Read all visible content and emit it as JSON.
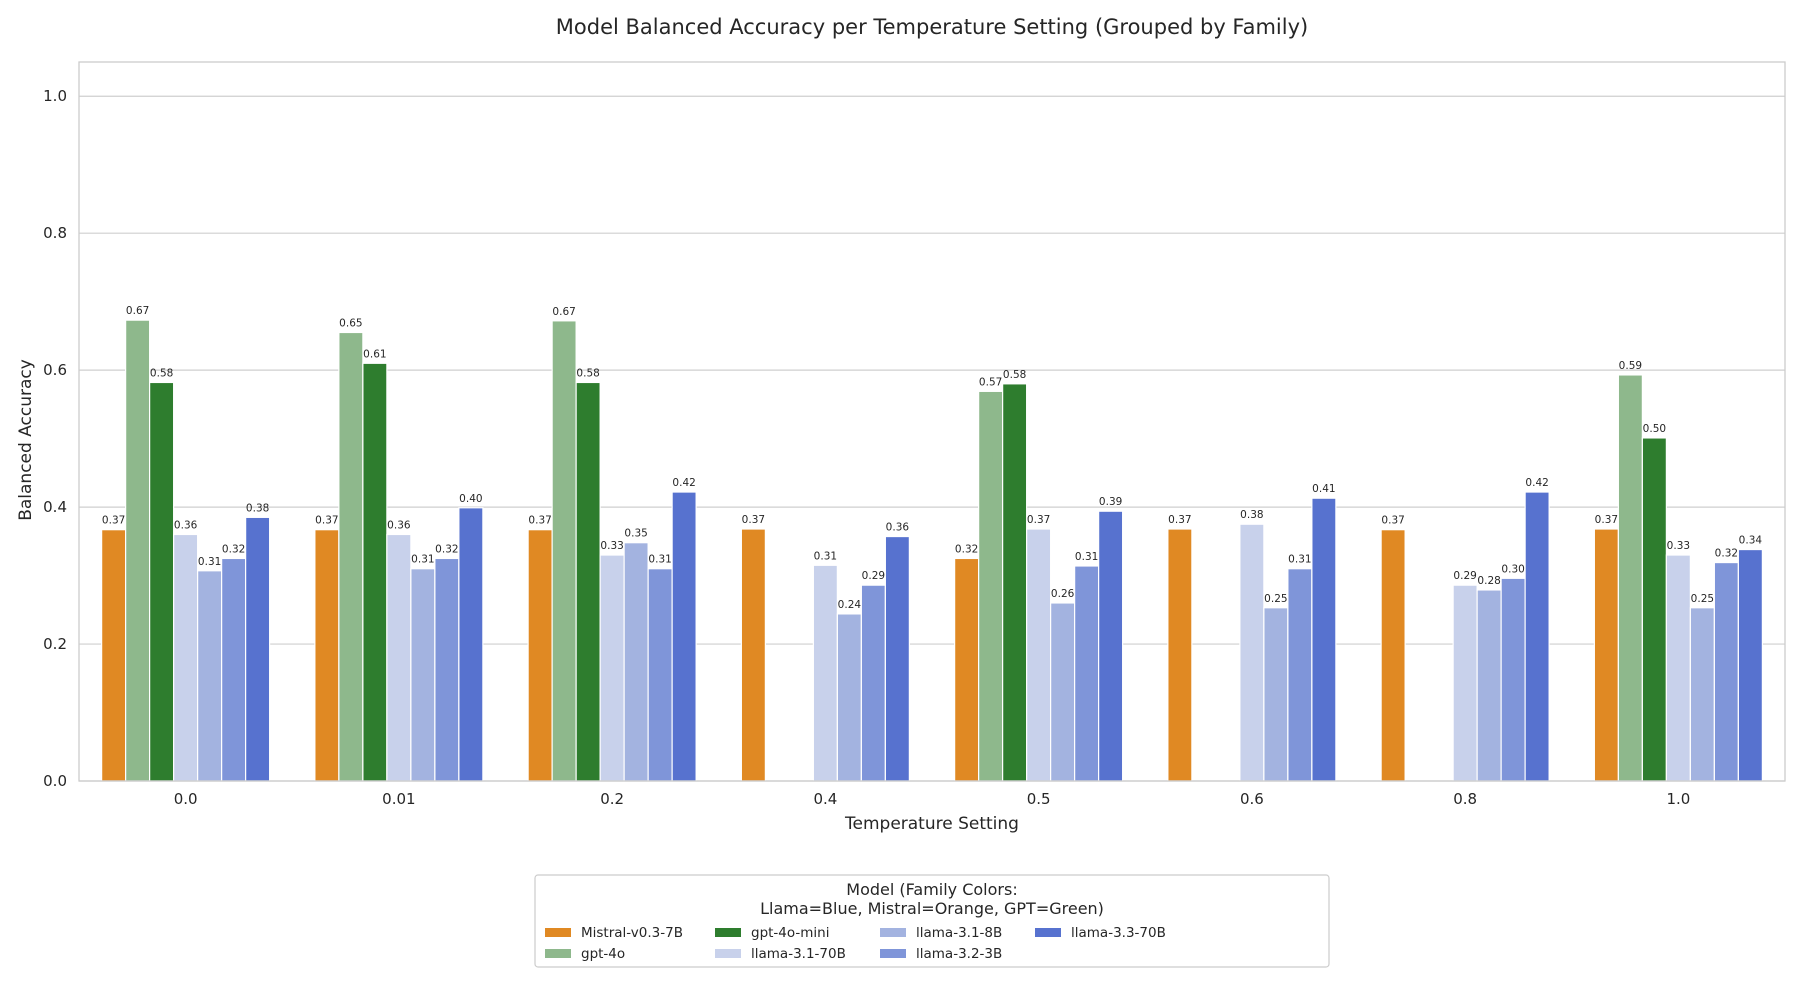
{
  "chart_data": {
    "type": "bar",
    "title": "Model Balanced Accuracy per Temperature Setting (Grouped by Family)",
    "xlabel": "Temperature Setting",
    "ylabel": "Balanced Accuracy",
    "ylim": [
      0,
      1.05
    ],
    "yticks": [
      "0.0",
      "0.2",
      "0.4",
      "0.6",
      "0.8",
      "1.0"
    ],
    "grid": true,
    "categories": [
      "0.0",
      "0.01",
      "0.2",
      "0.4",
      "0.5",
      "0.6",
      "0.8",
      "1.0"
    ],
    "series": [
      {
        "name": "Mistral-v0.3-7B",
        "color": "#E08923",
        "values": [
          0.367,
          0.367,
          0.367,
          0.368,
          0.325,
          0.368,
          0.367,
          0.368
        ]
      },
      {
        "name": "gpt-4o",
        "color": "#8EB88C",
        "values": [
          0.673,
          0.655,
          0.672,
          null,
          0.569,
          null,
          null,
          0.593
        ]
      },
      {
        "name": "gpt-4o-mini",
        "color": "#2E7D2E",
        "values": [
          0.582,
          0.61,
          0.582,
          null,
          0.58,
          null,
          null,
          0.501
        ]
      },
      {
        "name": "llama-3.1-70B",
        "color": "#C8D1EB",
        "values": [
          0.36,
          0.36,
          0.33,
          0.315,
          0.368,
          0.375,
          0.286,
          0.33
        ]
      },
      {
        "name": "llama-3.1-8B",
        "color": "#A3B3E0",
        "values": [
          0.307,
          0.31,
          0.348,
          0.244,
          0.26,
          0.253,
          0.279,
          0.253
        ]
      },
      {
        "name": "llama-3.2-3B",
        "color": "#7F95D9",
        "values": [
          0.325,
          0.325,
          0.31,
          0.286,
          0.314,
          0.31,
          0.296,
          0.319
        ]
      },
      {
        "name": "llama-3.3-70B",
        "color": "#5772CF",
        "values": [
          0.385,
          0.399,
          0.422,
          0.357,
          0.394,
          0.413,
          0.422,
          0.338
        ]
      }
    ],
    "data_labels": [
      [
        "0.37",
        "0.37",
        "0.37",
        "0.37",
        "0.32",
        "0.37",
        "0.37",
        "0.37"
      ],
      [
        "0.67",
        "0.65",
        "0.67",
        "",
        "0.57",
        "",
        "",
        "0.59"
      ],
      [
        "0.58",
        "0.61",
        "0.58",
        "",
        "0.58",
        "",
        "",
        "0.50"
      ],
      [
        "0.36",
        "0.36",
        "0.33",
        "0.31",
        "0.37",
        "0.38",
        "0.29",
        "0.33"
      ],
      [
        "0.31",
        "0.31",
        "0.35",
        "0.24",
        "0.26",
        "0.25",
        "0.28",
        "0.25"
      ],
      [
        "0.32",
        "0.32",
        "0.31",
        "0.29",
        "0.31",
        "0.31",
        "0.30",
        "0.32"
      ],
      [
        "0.38",
        "0.40",
        "0.42",
        "0.36",
        "0.39",
        "0.41",
        "0.42",
        "0.34"
      ]
    ],
    "legend": {
      "position": "bottom-center",
      "title_line1": "Model (Family Colors:",
      "title_line2": "Llama=Blue, Mistral=Orange, GPT=Green)"
    }
  }
}
